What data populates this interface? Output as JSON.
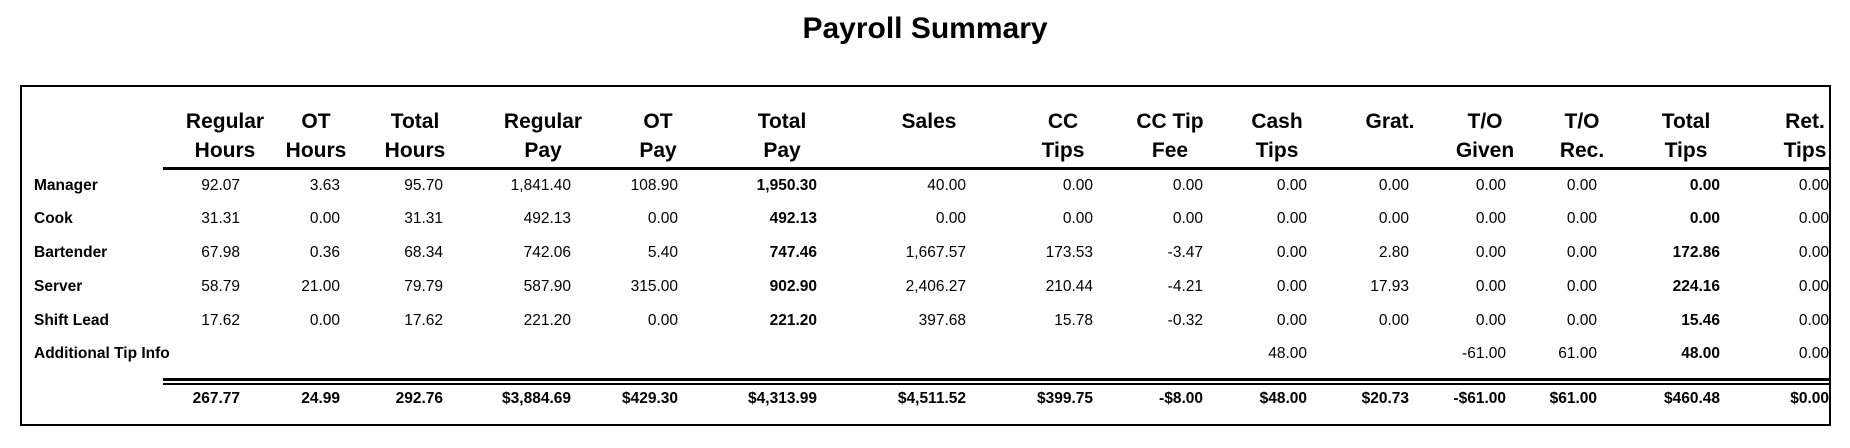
{
  "title": "Payroll Summary",
  "columns": [
    {
      "line1": "Regular",
      "line2": "Hours"
    },
    {
      "line1": "OT",
      "line2": "Hours"
    },
    {
      "line1": "Total",
      "line2": "Hours"
    },
    {
      "line1": "Regular",
      "line2": "Pay"
    },
    {
      "line1": "OT",
      "line2": "Pay"
    },
    {
      "line1": "Total",
      "line2": "Pay"
    },
    {
      "line1": "Sales",
      "line2": ""
    },
    {
      "line1": "CC",
      "line2": "Tips"
    },
    {
      "line1": "CC Tip",
      "line2": "Fee"
    },
    {
      "line1": "Cash",
      "line2": "Tips"
    },
    {
      "line1": "Grat.",
      "line2": ""
    },
    {
      "line1": "T/O",
      "line2": "Given"
    },
    {
      "line1": "T/O",
      "line2": "Rec."
    },
    {
      "line1": "Total",
      "line2": "Tips"
    },
    {
      "line1": "Ret.",
      "line2": "Tips"
    }
  ],
  "rows": [
    {
      "label": "Manager",
      "values": [
        "92.07",
        "3.63",
        "95.70",
        "1,841.40",
        "108.90",
        "1,950.30",
        "40.00",
        "0.00",
        "0.00",
        "0.00",
        "0.00",
        "0.00",
        "0.00",
        "0.00",
        "0.00"
      ]
    },
    {
      "label": "Cook",
      "values": [
        "31.31",
        "0.00",
        "31.31",
        "492.13",
        "0.00",
        "492.13",
        "0.00",
        "0.00",
        "0.00",
        "0.00",
        "0.00",
        "0.00",
        "0.00",
        "0.00",
        "0.00"
      ]
    },
    {
      "label": "Bartender",
      "values": [
        "67.98",
        "0.36",
        "68.34",
        "742.06",
        "5.40",
        "747.46",
        "1,667.57",
        "173.53",
        "-3.47",
        "0.00",
        "2.80",
        "0.00",
        "0.00",
        "172.86",
        "0.00"
      ]
    },
    {
      "label": "Server",
      "values": [
        "58.79",
        "21.00",
        "79.79",
        "587.90",
        "315.00",
        "902.90",
        "2,406.27",
        "210.44",
        "-4.21",
        "0.00",
        "17.93",
        "0.00",
        "0.00",
        "224.16",
        "0.00"
      ]
    },
    {
      "label": "Shift Lead",
      "values": [
        "17.62",
        "0.00",
        "17.62",
        "221.20",
        "0.00",
        "221.20",
        "397.68",
        "15.78",
        "-0.32",
        "0.00",
        "0.00",
        "0.00",
        "0.00",
        "15.46",
        "0.00"
      ]
    },
    {
      "label": "Additional Tip Info",
      "values": [
        "",
        "",
        "",
        "",
        "",
        "",
        "",
        "",
        "",
        "48.00",
        "",
        "-61.00",
        "61.00",
        "48.00",
        "0.00"
      ]
    }
  ],
  "totals": [
    "267.77",
    "24.99",
    "292.76",
    "$3,884.69",
    "$429.30",
    "$4,313.99",
    "$4,511.52",
    "$399.75",
    "-$8.00",
    "$48.00",
    "$20.73",
    "-$61.00",
    "$61.00",
    "$460.48",
    "$0.00"
  ]
}
